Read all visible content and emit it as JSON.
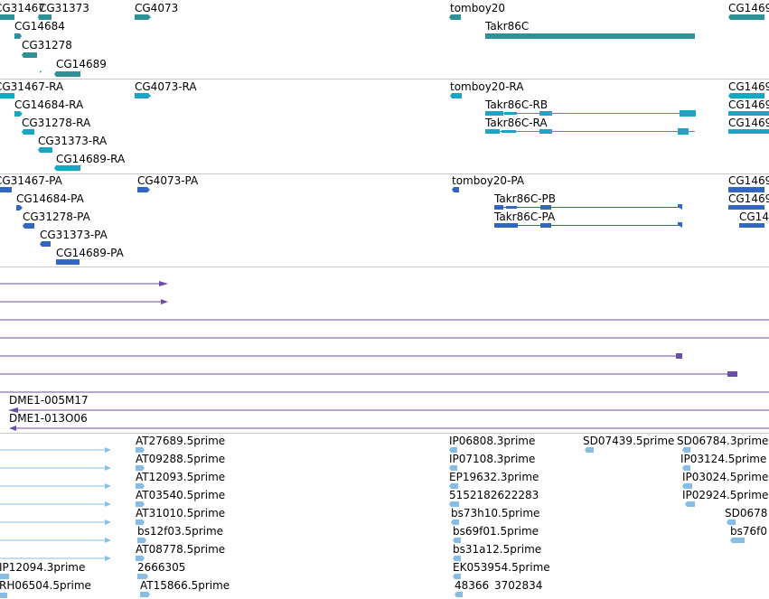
{
  "colors": {
    "gene": "#2f9195",
    "transcript": "#1ba4c3",
    "protein": "#3266c2",
    "alignment": "#6b4ea6",
    "est": "#86bde6",
    "separator": "#c8c8c8"
  },
  "tracks": {
    "genes": {
      "labels": [
        "CG31467",
        "CG31373",
        "CG4073",
        "tomboy20",
        "CG1469",
        "CG14684",
        "CG31278",
        "Takr86C",
        "CG14689"
      ]
    },
    "transcripts": {
      "labels": [
        "CG31467-RA",
        "CG4073-RA",
        "tomboy20-RA",
        "CG1469",
        "CG14684-RA",
        "Takr86C-RB",
        "CG1469",
        "CG31278-RA",
        "Takr86C-RA",
        "CG1469",
        "CG31373-RA",
        "CG14689-RA"
      ]
    },
    "proteins": {
      "labels": [
        "CG31467-PA",
        "CG4073-PA",
        "tomboy20-PA",
        "CG1469",
        "CG14684-PA",
        "Takr86C-PB",
        "CG1469",
        "CG31278-PA",
        "Takr86C-PA",
        "CG14",
        "CG31373-PA",
        "CG14689-PA"
      ]
    },
    "alignments": {
      "labels": [
        "DME1-005M17",
        "DME1-013O06"
      ]
    },
    "ests": {
      "labels": [
        "AT27689.5prime",
        "IP06808.3prime",
        "SD07439.5prime",
        "SD06784.3prime",
        "AT09288.5prime",
        "IP07108.3prime",
        "IP03124.5prime",
        "AT12093.5prime",
        "EP19632.3prime",
        "IP03024.5prime",
        "AT03540.5prime",
        "5152182622283",
        "IP02924.5prime",
        "AT31010.5prime",
        "bs73h10.5prime",
        "SD0678",
        "bs12f03.5prime",
        "bs69f01.5prime",
        "bs76f0",
        "AT08778.5prime",
        "bs31a12.5prime",
        "IP12094.3prime",
        "2666305",
        "EK053954.5prime",
        "RH06504.5prime",
        "AT15866.5prime",
        "48366",
        "3702834"
      ]
    }
  }
}
